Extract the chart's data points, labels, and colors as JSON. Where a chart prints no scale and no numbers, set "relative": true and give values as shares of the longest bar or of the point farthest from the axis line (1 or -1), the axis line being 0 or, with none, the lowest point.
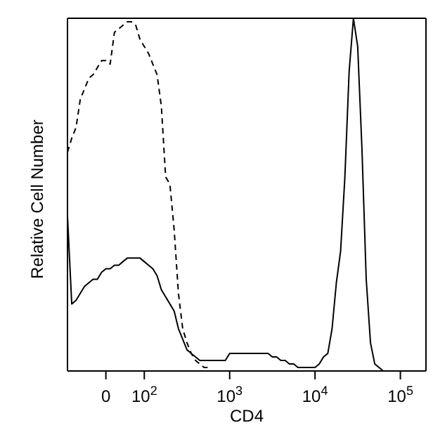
{
  "chart_data": {
    "type": "line",
    "relative": true,
    "ylabel": "Relative Cell Number",
    "xlabel": "CD4",
    "marker": "none",
    "categories": [
      null,
      null,
      null,
      null,
      null,
      null,
      null,
      null,
      null,
      "0",
      null,
      null,
      null,
      null,
      null,
      null,
      null,
      null,
      "10$^{2}$",
      null,
      null,
      null,
      null,
      null,
      null,
      null,
      null,
      null,
      null,
      null,
      null,
      null,
      null,
      null,
      null,
      null,
      null,
      null,
      "10$^{3}$",
      null,
      null,
      null,
      null,
      null,
      null,
      null,
      null,
      null,
      null,
      null,
      null,
      null,
      null,
      null,
      null,
      null,
      null,
      null,
      "10$^{4}$",
      null,
      null,
      null,
      null,
      null,
      null,
      null,
      null,
      null,
      null,
      null,
      null,
      null,
      null,
      null,
      null,
      null,
      null,
      null,
      "10$^{5}$",
      null,
      null,
      null,
      null,
      null,
      null
    ],
    "series": [
      {
        "color": "#000000",
        "line_style": "dashed",
        "values": [
          0.62,
          0.66,
          0.69,
          0.77,
          0.8,
          0.83,
          0.84,
          0.86,
          0.88,
          0.88,
          0.87,
          0.96,
          0.97,
          0.98,
          0.99,
          0.99,
          0.98,
          0.94,
          0.92,
          0.9,
          0.87,
          0.84,
          0.75,
          0.55,
          0.53,
          0.4,
          0.22,
          0.12,
          0.08,
          0.05,
          0.03,
          0.02,
          0.01,
          0.01,
          null,
          null,
          null,
          null,
          null,
          null,
          null,
          null,
          null,
          null,
          null,
          null,
          null,
          null,
          null,
          null,
          null,
          null,
          null,
          null,
          null,
          null,
          null,
          null,
          null,
          null,
          null,
          null,
          null,
          null,
          null,
          null,
          null,
          null,
          null,
          null,
          null,
          null,
          null,
          null,
          null,
          null,
          null,
          null,
          null,
          null,
          null,
          null,
          null,
          null,
          null
        ]
      },
      {
        "color": "#000000",
        "line_style": "solid",
        "values": [
          0.44,
          0.19,
          0.2,
          0.22,
          0.24,
          0.25,
          0.26,
          0.26,
          0.28,
          0.29,
          0.29,
          0.3,
          0.3,
          0.31,
          0.32,
          0.32,
          0.32,
          0.32,
          0.31,
          0.3,
          0.29,
          0.27,
          0.23,
          0.21,
          0.19,
          0.17,
          0.12,
          0.09,
          0.06,
          0.05,
          0.04,
          0.03,
          0.03,
          0.03,
          0.03,
          0.03,
          0.03,
          0.03,
          0.05,
          0.05,
          0.05,
          0.05,
          0.05,
          0.05,
          0.05,
          0.05,
          0.05,
          0.05,
          0.04,
          0.04,
          0.03,
          0.03,
          0.02,
          0.02,
          0.01,
          0.01,
          0.01,
          0.01,
          0.01,
          0.02,
          0.04,
          0.05,
          0.12,
          0.25,
          0.34,
          0.55,
          0.85,
          1,
          0.92,
          0.63,
          0.26,
          0.08,
          0.02,
          0.01,
          0,
          0,
          0,
          0,
          0,
          0,
          0,
          0,
          0,
          0,
          0
        ]
      }
    ]
  }
}
